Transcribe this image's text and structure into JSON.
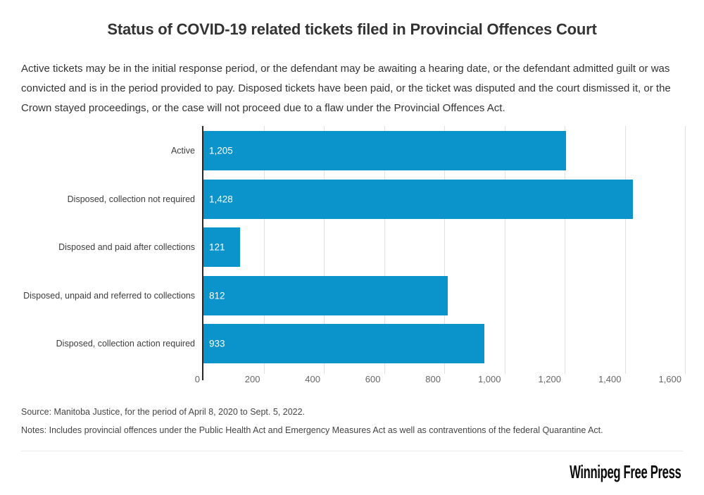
{
  "chart_data": {
    "type": "bar",
    "orientation": "horizontal",
    "title": "Status of COVID-19 related tickets filed in Provincial Offences Court",
    "subtitle": "Active tickets may be in the initial response period, or the defendant may be awaiting a hearing date, or the defendant admitted guilt or was convicted and is in the period provided to pay. Disposed tickets have been paid, or the ticket was disputed and the court dismissed it, or the Crown stayed proceedings, or the case will not proceed due to a flaw under the Provincial Offences Act.",
    "categories": [
      "Active",
      "Disposed, collection not required",
      "Disposed and paid after collections",
      "Disposed, unpaid and referred to collections",
      "Disposed, collection action required"
    ],
    "values": [
      1205,
      1428,
      121,
      812,
      933
    ],
    "value_labels": [
      "1,205",
      "1,428",
      "121",
      "812",
      "933"
    ],
    "xlabel": "",
    "ylabel": "",
    "xlim": [
      0,
      1600
    ],
    "x_ticks": [
      0,
      200,
      400,
      600,
      800,
      1000,
      1200,
      1400,
      1600
    ],
    "x_tick_labels": [
      "0",
      "200",
      "400",
      "600",
      "800",
      "1,000",
      "1,200",
      "1,400",
      "1,600"
    ],
    "grid": "vertical-gridlines-on",
    "legend": "none",
    "colors": {
      "bar": "#0b93cc",
      "axis": "#262626",
      "gridline": "#e2e2e2",
      "tick_text": "#666666",
      "category_text": "#3d3d3d",
      "value_text": "#ffffff"
    }
  },
  "footer": {
    "source": "Source: Manitoba Justice, for the period of April 8, 2020 to Sept. 5, 2022.",
    "notes": "Notes: Includes provincial offences under the Public Health Act and Emergency Measures Act as well as contraventions of the federal Quarantine Act.",
    "logo": "Winnipeg Free Press"
  }
}
